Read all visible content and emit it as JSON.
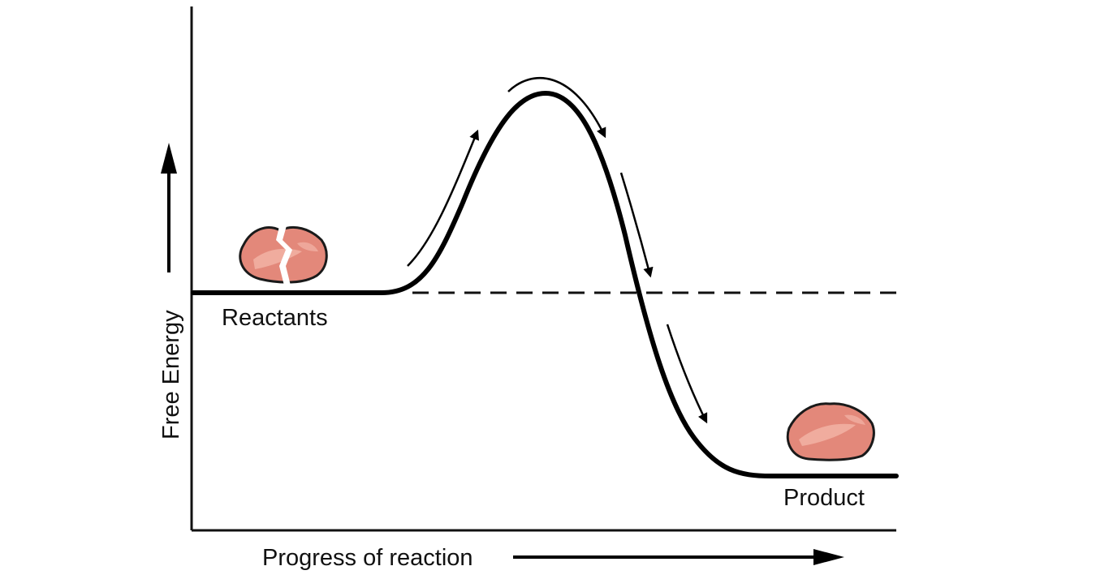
{
  "labels": {
    "y_axis": "Free Energy",
    "x_axis": "Progress of reaction",
    "reactants": "Reactants",
    "product": "Product"
  },
  "colors": {
    "line": "#000000",
    "molecule_fill": "#e3887a",
    "molecule_highlight": "#f2b5a8",
    "molecule_outline": "#1a1a1a"
  },
  "icons": {
    "reactant_molecule": "split-molecule-icon",
    "product_molecule": "molecule-icon"
  }
}
